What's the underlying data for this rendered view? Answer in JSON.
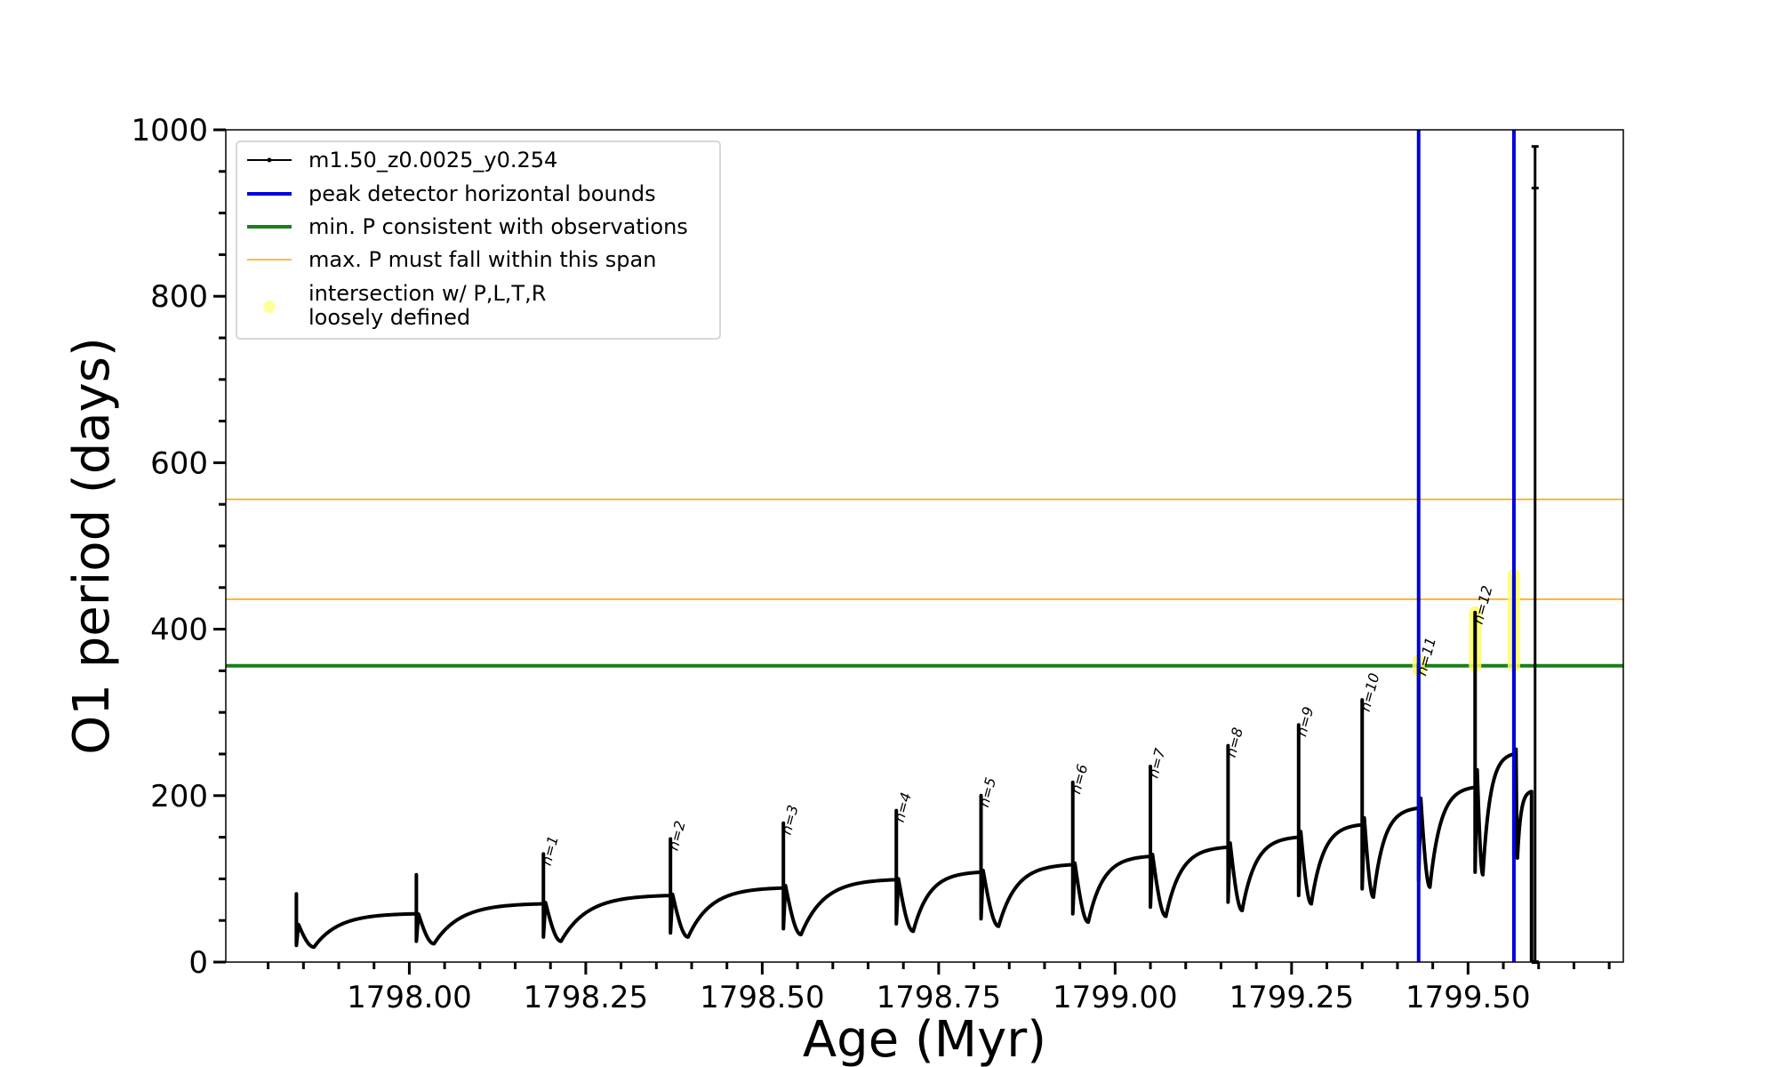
{
  "chart_data": {
    "type": "line",
    "xlabel": "Age (Myr)",
    "ylabel": "O1 period (days)",
    "xlim": [
      1797.74,
      1799.72
    ],
    "ylim": [
      0,
      1000
    ],
    "x_ticks": [
      "1798.00",
      "1798.25",
      "1798.50",
      "1798.75",
      "1799.00",
      "1799.25",
      "1799.50"
    ],
    "y_ticks": [
      "0",
      "200",
      "400",
      "600",
      "800",
      "1000"
    ],
    "legend": {
      "position": "upper-left",
      "entries": [
        {
          "label": "m1.50_z0.0025_y0.254",
          "style": "line-marker",
          "color": "#000000"
        },
        {
          "label": "peak detector horizontal bounds",
          "style": "line",
          "color": "#0000dd"
        },
        {
          "label": "min. P consistent with observations",
          "style": "line",
          "color": "#1a7f1a"
        },
        {
          "label": "max. P must fall within this span",
          "style": "thin-line",
          "color": "#ffa500"
        },
        {
          "label_lines": [
            "intersection w/ P,L,T,R",
            "loosely defined"
          ],
          "style": "dot",
          "color": "#ffff99"
        }
      ]
    },
    "series": [
      {
        "name": "m1.50_z0.0025_y0.254",
        "color": "#000000",
        "pulses": [
          {
            "t0": 1797.84,
            "base": 22,
            "floor": 18,
            "peak": 82,
            "end_value": 58,
            "spike_low": 20
          },
          {
            "t0": 1798.01,
            "base": 58,
            "floor": 22,
            "peak": 105,
            "end_value": 70,
            "spike_low": 25
          },
          {
            "t0": 1798.19,
            "base": 70,
            "floor": 25,
            "peak": 130,
            "end_value": 80,
            "spike_low": 30
          },
          {
            "t0": 1798.37,
            "base": 80,
            "floor": 30,
            "peak": 148,
            "end_value": 89,
            "spike_low": 35
          },
          {
            "t0": 1798.53,
            "base": 89,
            "floor": 33,
            "peak": 167,
            "end_value": 99,
            "spike_low": 40
          },
          {
            "t0": 1798.69,
            "base": 99,
            "floor": 37,
            "peak": 182,
            "end_value": 108,
            "spike_low": 46
          },
          {
            "t0": 1798.81,
            "base": 108,
            "floor": 43,
            "peak": 200,
            "end_value": 117,
            "spike_low": 52
          },
          {
            "t0": 1798.94,
            "base": 117,
            "floor": 48,
            "peak": 216,
            "end_value": 127,
            "spike_low": 58
          },
          {
            "t0": 1799.05,
            "base": 127,
            "floor": 55,
            "peak": 235,
            "end_value": 138,
            "spike_low": 66
          },
          {
            "t0": 1799.16,
            "base": 138,
            "floor": 62,
            "peak": 260,
            "end_value": 150,
            "spike_low": 72
          },
          {
            "t0": 1799.26,
            "base": 150,
            "floor": 70,
            "peak": 285,
            "end_value": 165,
            "spike_low": 80
          },
          {
            "t0": 1799.35,
            "base": 165,
            "floor": 78,
            "peak": 315,
            "end_value": 185,
            "spike_low": 88
          },
          {
            "t0": 1799.43,
            "base": 185,
            "floor": 90,
            "peak": 358,
            "end_value": 210,
            "spike_low": 98
          },
          {
            "t0": 1799.51,
            "base": 210,
            "floor": 105,
            "peak": 420,
            "end_value": 250,
            "spike_low": 108
          },
          {
            "t0": 1799.565,
            "base": 250,
            "floor": 125,
            "peak": 465,
            "end_value": 205,
            "spike_low": 128
          }
        ],
        "final_drop": {
          "t": 1799.59,
          "value": 0
        },
        "final_spike": {
          "t": 1799.595,
          "peak": 980,
          "low": 0,
          "marker_value": 930
        }
      }
    ],
    "vertical_lines": {
      "name": "peak detector horizontal bounds",
      "color": "#0000dd",
      "x": [
        1799.43,
        1799.565
      ]
    },
    "horizontal_lines": [
      {
        "name": "min. P consistent with observations",
        "color": "#1a7f1a",
        "y": 356
      },
      {
        "name": "max. P must fall within this span",
        "color": "#ffa500",
        "y": 436
      },
      {
        "name": "max. P must fall within this span",
        "color": "#ffa500",
        "y": 556
      }
    ],
    "intersections": [
      {
        "x": 1799.43,
        "y_from": 350,
        "y_to": 362
      },
      {
        "x": 1799.51,
        "y_from": 356,
        "y_to": 420
      },
      {
        "x": 1799.565,
        "y_from": 356,
        "y_to": 465
      }
    ],
    "peak_labels": [
      {
        "text": "n=1",
        "x": 1798.19,
        "y": 130
      },
      {
        "text": "n=2",
        "x": 1798.37,
        "y": 148
      },
      {
        "text": "n=3",
        "x": 1798.53,
        "y": 167
      },
      {
        "text": "n=4",
        "x": 1798.69,
        "y": 182
      },
      {
        "text": "n=5",
        "x": 1798.81,
        "y": 200
      },
      {
        "text": "n=6",
        "x": 1798.94,
        "y": 216
      },
      {
        "text": "n=7",
        "x": 1799.05,
        "y": 235
      },
      {
        "text": "n=8",
        "x": 1799.16,
        "y": 260
      },
      {
        "text": "n=9",
        "x": 1799.26,
        "y": 285
      },
      {
        "text": "n=10",
        "x": 1799.35,
        "y": 315
      },
      {
        "text": "n=11",
        "x": 1799.43,
        "y": 358
      },
      {
        "text": "n=12",
        "x": 1799.51,
        "y": 420
      }
    ],
    "grid": false
  }
}
